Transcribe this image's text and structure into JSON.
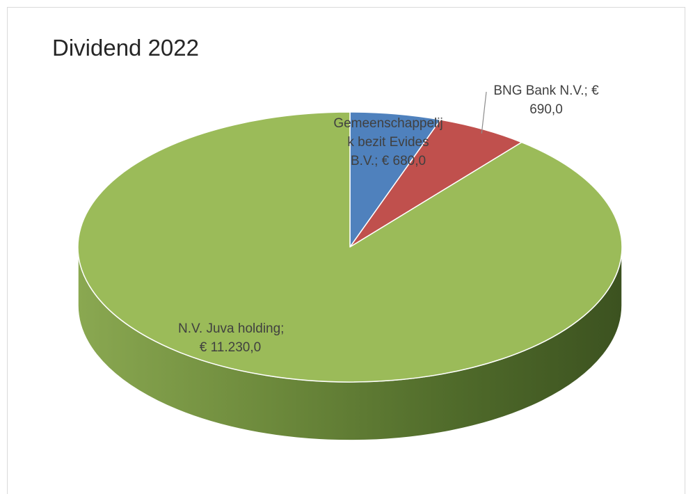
{
  "chart_data": {
    "type": "pie",
    "title": "Dividend 2022",
    "style": "3d",
    "slices": [
      {
        "label_lines": [
          "Gemeenschappelij",
          "k bezit Evides",
          "B.V.;  € 680,0"
        ],
        "category": "Gemeenschappelijk bezit Evides B.V.",
        "value": 680.0,
        "color": "#4f81bd"
      },
      {
        "label_lines": [
          "BNG Bank N.V.;  €",
          "690,0"
        ],
        "category": "BNG Bank N.V.",
        "value": 690.0,
        "color": "#c0504d"
      },
      {
        "label_lines": [
          "N.V. Juva holding;",
          "€ 11.230,0"
        ],
        "category": "N.V. Juva holding",
        "value": 11230.0,
        "color": "#9bbb59"
      }
    ]
  }
}
